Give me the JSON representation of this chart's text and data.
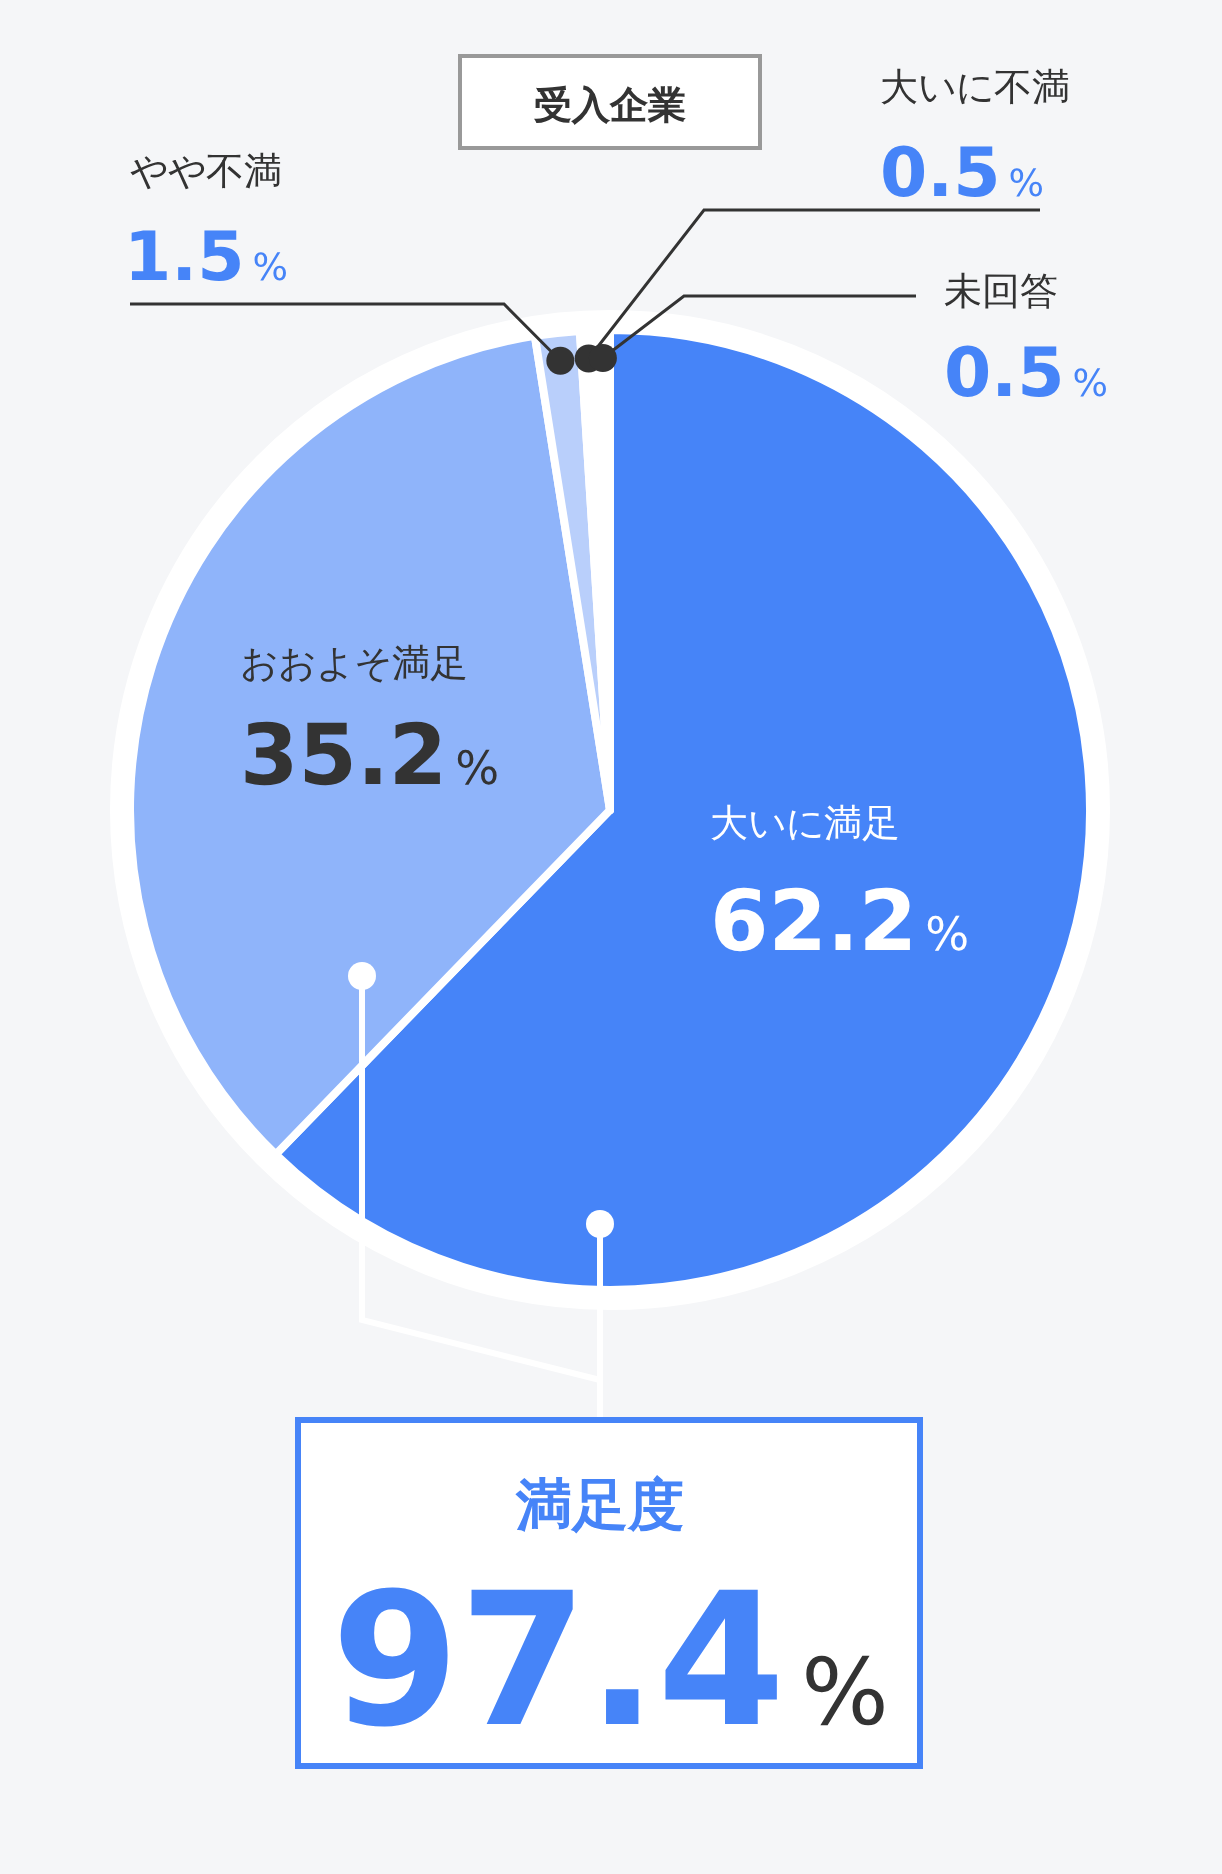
{
  "chart_data": {
    "type": "pie",
    "title": "受入企業",
    "categories": [
      "大いに満足",
      "おおよそ満足",
      "やや不満",
      "大いに不満",
      "未回答"
    ],
    "values": [
      62.2,
      35.2,
      1.5,
      0.5,
      0.5
    ],
    "colors": [
      "#4684f8",
      "#8fb4fa",
      "#b9cffb",
      "#ffffff",
      "#ffffff"
    ],
    "value_labels": [
      "62.2%",
      "35.2%",
      "1.5%",
      "0.5%",
      "0.5%"
    ],
    "annotations": [
      "満足度",
      "97.4%"
    ]
  }
}
